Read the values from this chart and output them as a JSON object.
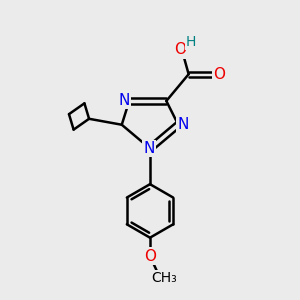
{
  "background_color": "#ebebeb",
  "bond_color": "#000000",
  "bond_width": 1.8,
  "atom_colors": {
    "N": "#0000ee",
    "O": "#ee0000",
    "H": "#008080",
    "C": "#000000"
  },
  "font_size": 11,
  "figsize": [
    3.0,
    3.0
  ],
  "dpi": 100
}
